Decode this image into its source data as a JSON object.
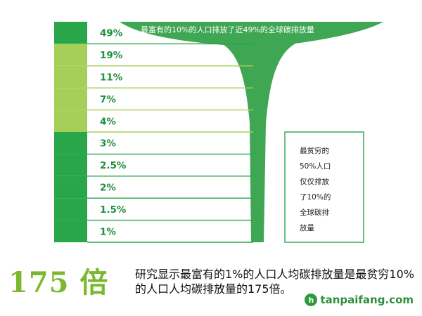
{
  "chart_data": {
    "type": "bar",
    "categories": [
      "49%",
      "19%",
      "11%",
      "7%",
      "4%",
      "3%",
      "2.5%",
      "2%",
      "1.5%",
      "1%"
    ],
    "values": [
      49,
      19,
      11,
      7,
      4,
      3,
      2.5,
      2,
      1.5,
      1
    ],
    "unit": "%",
    "title": "",
    "xlabel": "",
    "ylabel": "",
    "funnel_annotation": "最富有的10%的人口排放了近49%的全球碳排放量",
    "side_annotation": "最贫穷的\n50%人口\n仅仅排放\n了10%的\n全球碳排\n放量",
    "colors": {
      "dark_green": "#2aa64a",
      "light_green": "#a6cf5a",
      "funnel_green": "#3fa653",
      "label_green": "#1e8f3d",
      "ratio_green": "#7cb82f"
    }
  },
  "headline": {
    "ratio": "175 倍",
    "caption": "研究显示最富有的1%的人口人均碳排放量是最贫穷10%的人口人均碳排放量的175倍。"
  },
  "watermark": {
    "logo_letter": "h",
    "text": "tanpaifang.com"
  }
}
